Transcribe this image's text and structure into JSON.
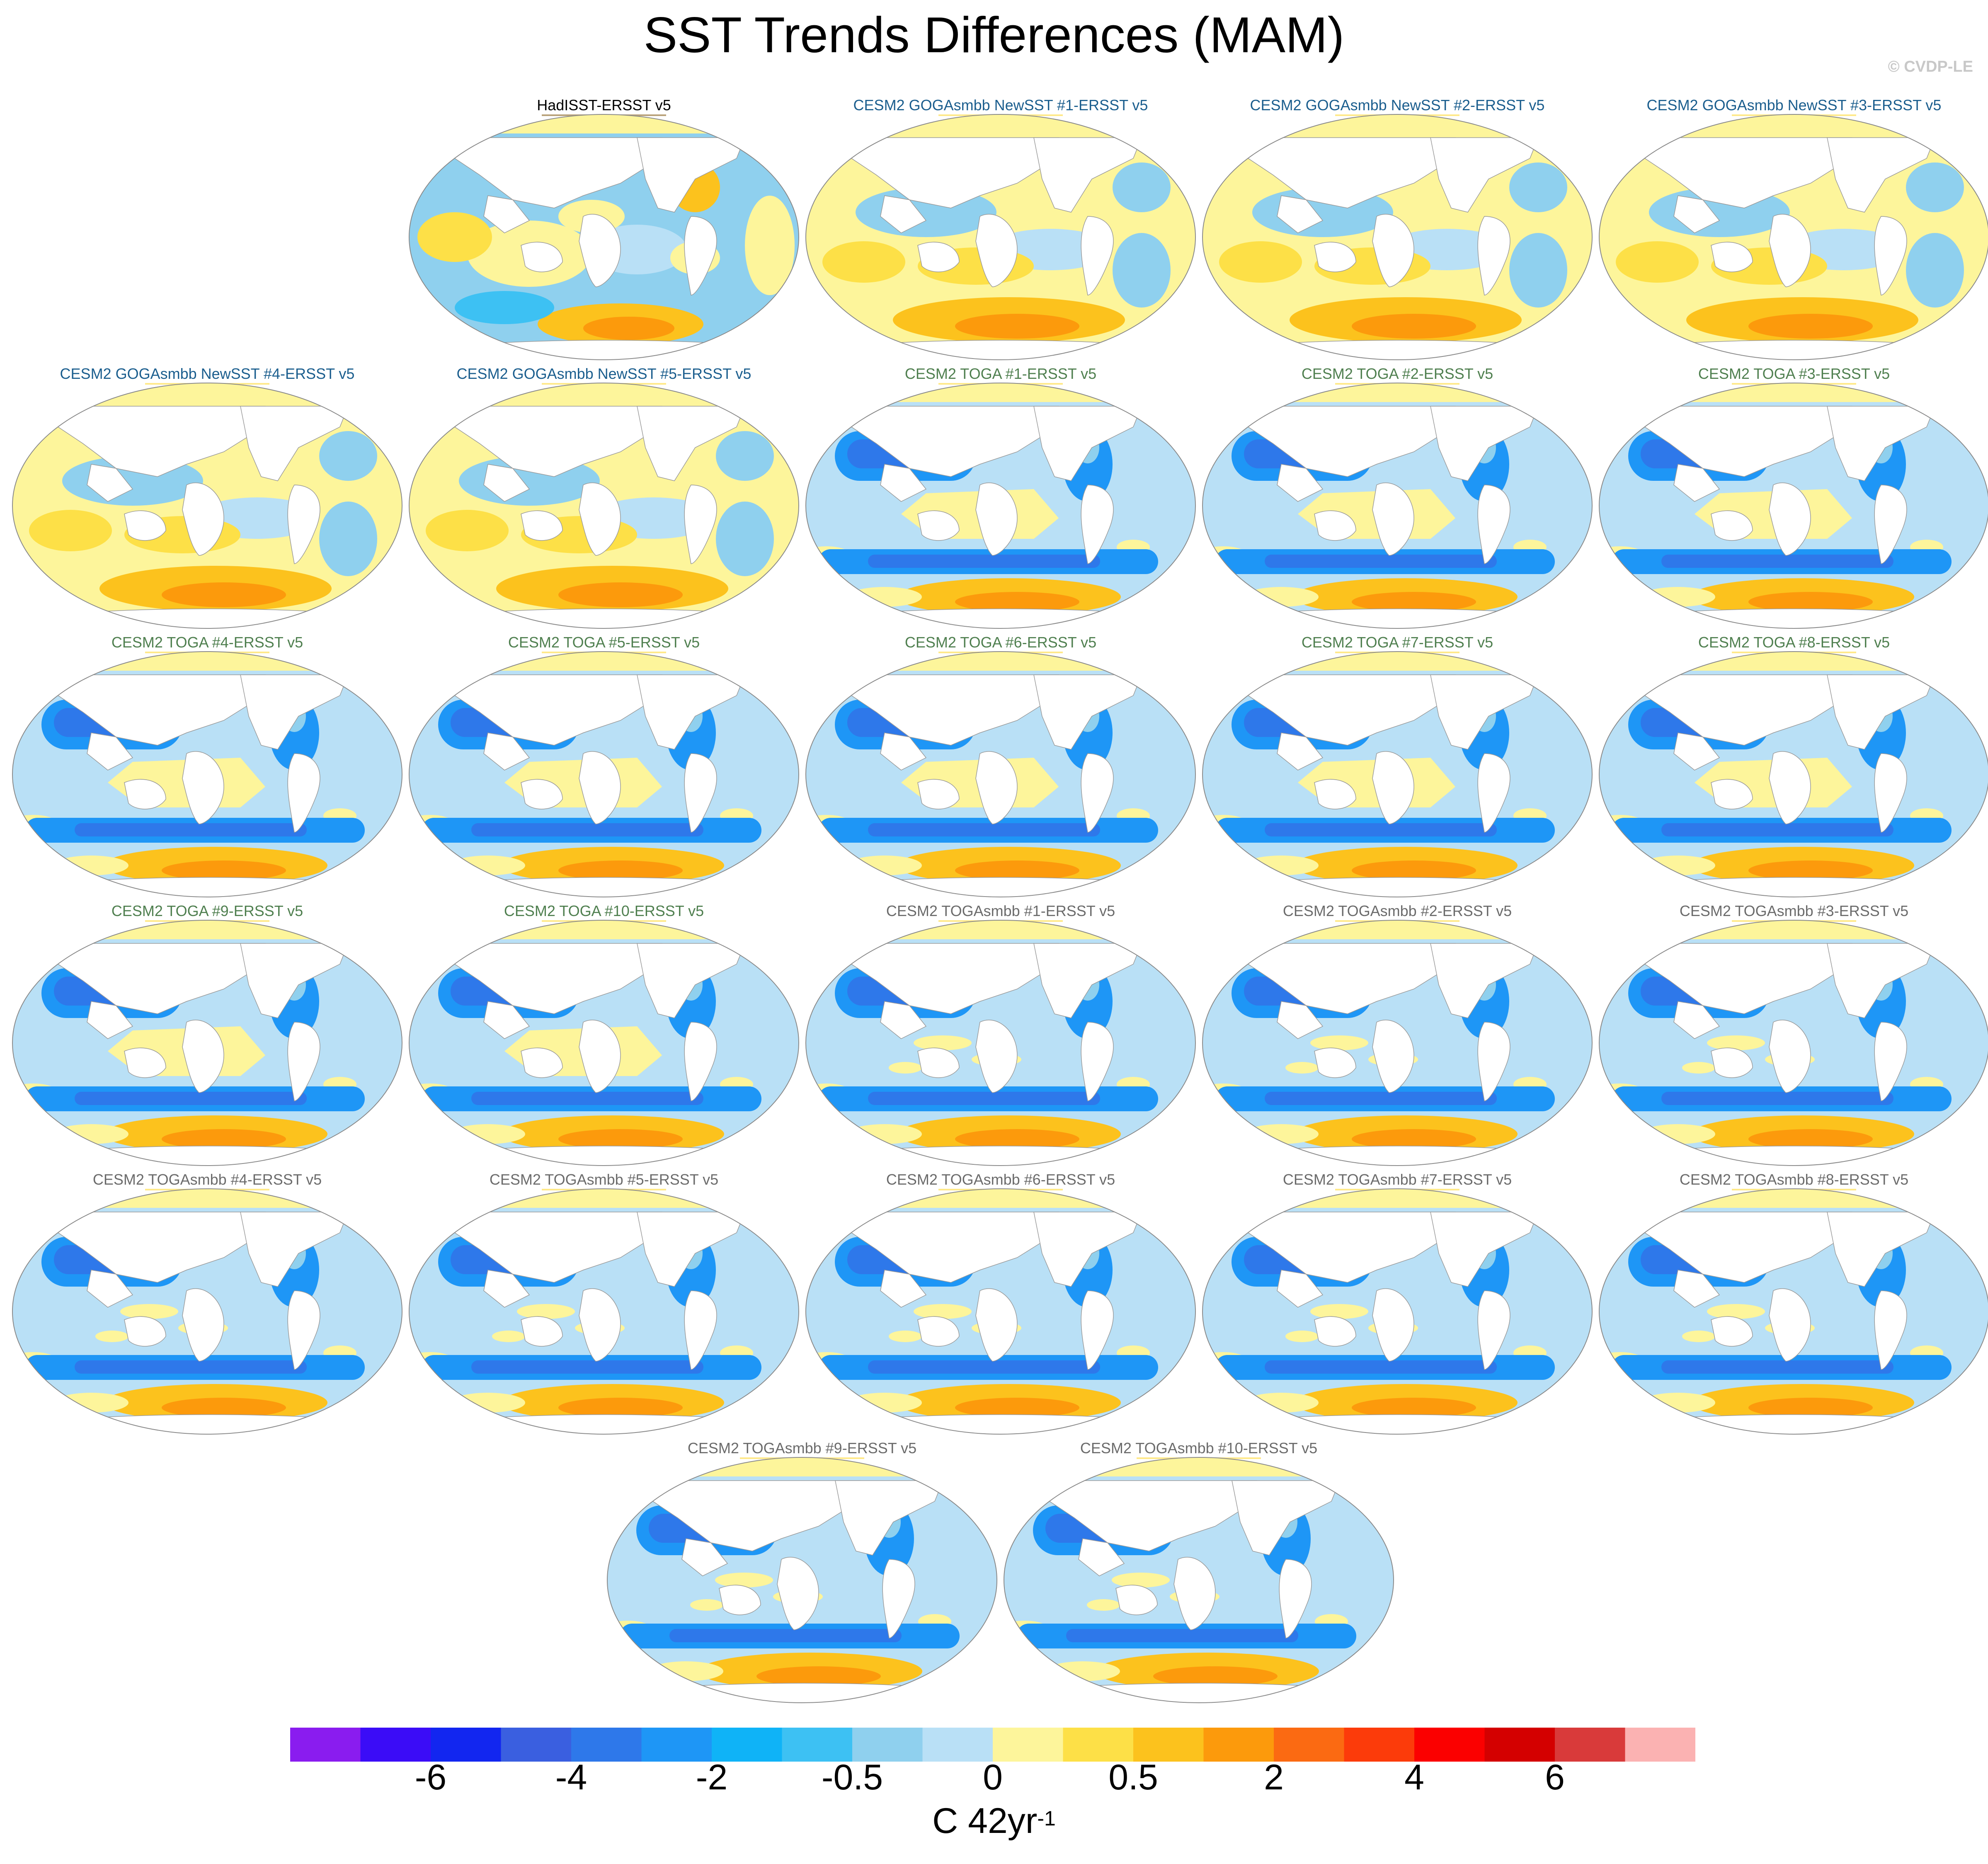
{
  "title": "SST Trends Differences (MAM)",
  "credit": "© CVDP-LE",
  "colors": {
    "obs_title": "#000000",
    "goga_title": "#1b5e8e",
    "toga_title": "#4f7f4f",
    "togasmbb_title": "#6b6b6b",
    "underline_obs": "#b9a27a",
    "underline_goga": "#ffe98a",
    "underline_toga": "#ffe98a",
    "underline_togasmbb": "#ffe98a"
  },
  "panels": [
    {
      "label": "HadISST-ERSST v5",
      "group": "obs",
      "style": "obs"
    },
    {
      "label": "CESM2 GOGAsmbb NewSST #1-ERSST v5",
      "group": "goga",
      "style": "goga"
    },
    {
      "label": "CESM2 GOGAsmbb NewSST #2-ERSST v5",
      "group": "goga",
      "style": "goga"
    },
    {
      "label": "CESM2 GOGAsmbb NewSST #3-ERSST v5",
      "group": "goga",
      "style": "goga"
    },
    {
      "label": "CESM2 GOGAsmbb NewSST #4-ERSST v5",
      "group": "goga",
      "style": "goga"
    },
    {
      "label": "CESM2 GOGAsmbb NewSST #5-ERSST v5",
      "group": "goga",
      "style": "goga"
    },
    {
      "label": "CESM2 TOGA #1-ERSST v5",
      "group": "toga",
      "style": "toga"
    },
    {
      "label": "CESM2 TOGA #2-ERSST v5",
      "group": "toga",
      "style": "toga"
    },
    {
      "label": "CESM2 TOGA #3-ERSST v5",
      "group": "toga",
      "style": "toga"
    },
    {
      "label": "CESM2 TOGA #4-ERSST v5",
      "group": "toga",
      "style": "toga"
    },
    {
      "label": "CESM2 TOGA #5-ERSST v5",
      "group": "toga",
      "style": "toga"
    },
    {
      "label": "CESM2 TOGA #6-ERSST v5",
      "group": "toga",
      "style": "toga"
    },
    {
      "label": "CESM2 TOGA #7-ERSST v5",
      "group": "toga",
      "style": "toga"
    },
    {
      "label": "CESM2 TOGA #8-ERSST v5",
      "group": "toga",
      "style": "toga"
    },
    {
      "label": "CESM2 TOGA #9-ERSST v5",
      "group": "toga",
      "style": "toga"
    },
    {
      "label": "CESM2 TOGA #10-ERSST v5",
      "group": "toga",
      "style": "toga"
    },
    {
      "label": "CESM2 TOGAsmbb #1-ERSST v5",
      "group": "togasmbb",
      "style": "togasmbb"
    },
    {
      "label": "CESM2 TOGAsmbb #2-ERSST v5",
      "group": "togasmbb",
      "style": "togasmbb"
    },
    {
      "label": "CESM2 TOGAsmbb #3-ERSST v5",
      "group": "togasmbb",
      "style": "togasmbb"
    },
    {
      "label": "CESM2 TOGAsmbb #4-ERSST v5",
      "group": "togasmbb",
      "style": "togasmbb"
    },
    {
      "label": "CESM2 TOGAsmbb #5-ERSST v5",
      "group": "togasmbb",
      "style": "togasmbb"
    },
    {
      "label": "CESM2 TOGAsmbb #6-ERSST v5",
      "group": "togasmbb",
      "style": "togasmbb"
    },
    {
      "label": "CESM2 TOGAsmbb #7-ERSST v5",
      "group": "togasmbb",
      "style": "togasmbb"
    },
    {
      "label": "CESM2 TOGAsmbb #8-ERSST v5",
      "group": "togasmbb",
      "style": "togasmbb"
    },
    {
      "label": "CESM2 TOGAsmbb #9-ERSST v5",
      "group": "togasmbb",
      "style": "togasmbb"
    },
    {
      "label": "CESM2 TOGAsmbb #10-ERSST v5",
      "group": "togasmbb",
      "style": "togasmbb"
    }
  ],
  "colorbar": {
    "colors": [
      "#8a1cef",
      "#3b0cf7",
      "#1226f0",
      "#3a5fe0",
      "#2e78ea",
      "#1e96f6",
      "#0fb3f7",
      "#3dc1f3",
      "#8fd0ee",
      "#b9e0f6",
      "#fdf59b",
      "#fde047",
      "#fcc21d",
      "#fc9a0c",
      "#fb6a12",
      "#fc3b0a",
      "#fb0000",
      "#d40000",
      "#d93a3a",
      "#fbb2b2"
    ],
    "ticks": [
      "-6",
      "-4",
      "-2",
      "-0.5",
      "0",
      "0.5",
      "2",
      "4",
      "6"
    ],
    "units_main": "C 42yr",
    "units_sup": "-1"
  }
}
